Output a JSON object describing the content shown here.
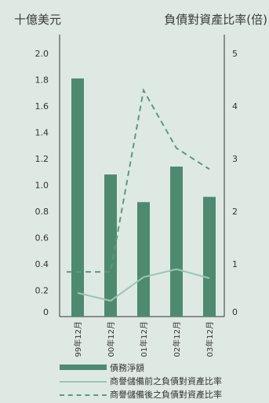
{
  "header": {
    "left_unit": "十億美元",
    "right_unit": "負債對資產比率(倍)"
  },
  "colors": {
    "bar": "#4e8a70",
    "solid_line": "#9cc5b5",
    "dashed_line": "#5a9b7e",
    "axis": "#333333"
  },
  "chart_data": {
    "type": "bar",
    "categories": [
      "99年12月",
      "00年12月",
      "01年12月",
      "02年12月",
      "03年12月"
    ],
    "series": [
      {
        "name": "債務淨額",
        "type": "bar",
        "axis": "left",
        "values": [
          1.81,
          1.08,
          0.87,
          1.14,
          0.91
        ]
      },
      {
        "name": "商譽儲備前之負債對資產比率",
        "type": "line",
        "style": "solid",
        "axis": "right",
        "values": [
          0.45,
          0.3,
          0.75,
          0.9,
          0.73
        ]
      },
      {
        "name": "商譽儲備後之負債對資產比率",
        "type": "line",
        "style": "dashed",
        "axis": "right",
        "values": [
          0.85,
          0.85,
          4.3,
          3.2,
          2.8
        ]
      }
    ],
    "left_axis": {
      "ylim": [
        0,
        2.0
      ],
      "ticks": [
        "0",
        "0.2",
        "0.4",
        "0.6",
        "0.8",
        "1.0",
        "1.2",
        "1.4",
        "1.6",
        "1.8",
        "2.0"
      ]
    },
    "right_axis": {
      "ylim": [
        0,
        5
      ],
      "ticks": [
        "0",
        "1",
        "2",
        "3",
        "4",
        "5"
      ]
    },
    "legend_position": "bottom"
  }
}
